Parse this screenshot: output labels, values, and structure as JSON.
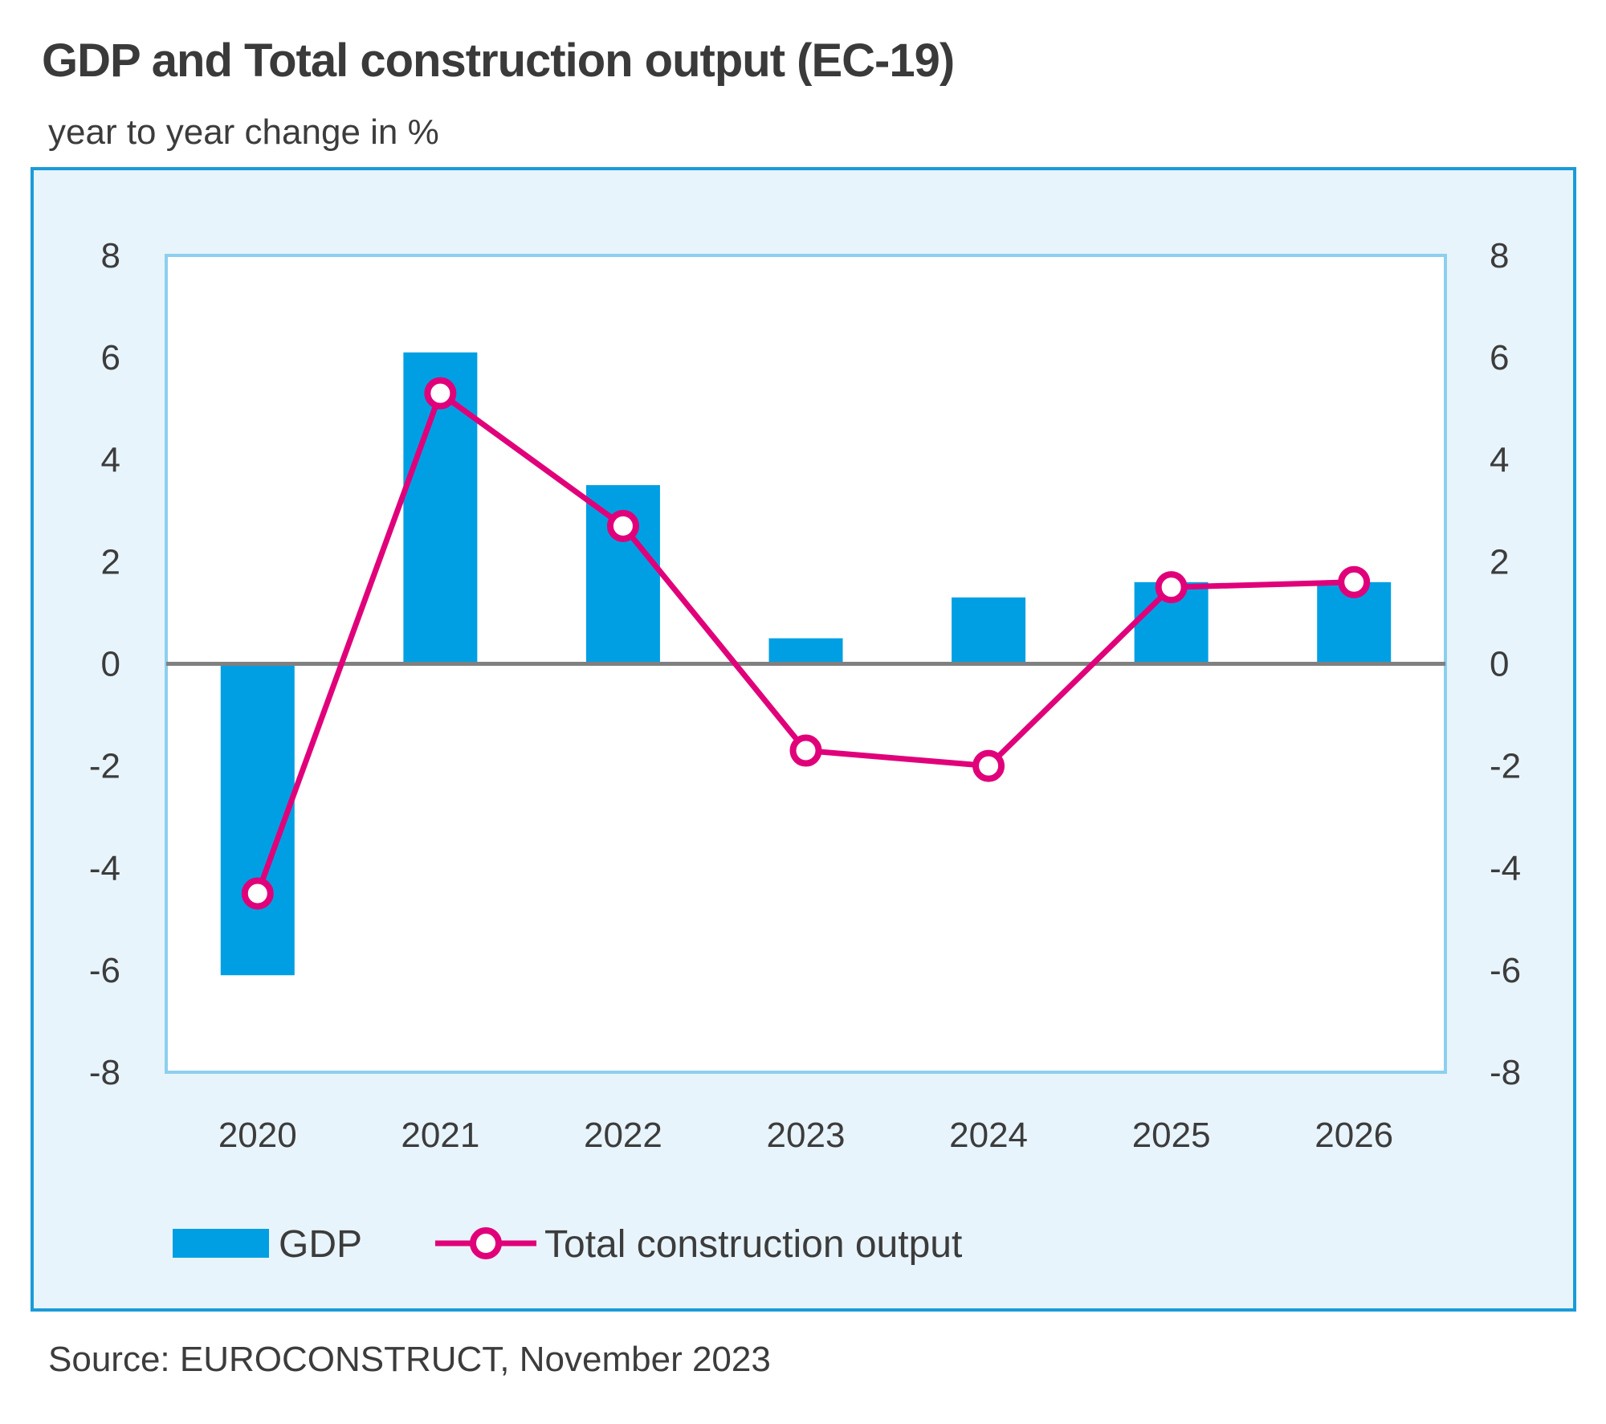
{
  "header": {
    "title": "GDP and Total construction output (EC-19)",
    "subtitle": "year to year change in %"
  },
  "footer": {
    "source": "Source: EUROCONSTRUCT, November 2023"
  },
  "colors": {
    "gdp": "#009fe3",
    "construction": "#e0007a",
    "plot_border": "#8ccfee",
    "panel_border": "#1a9bd7",
    "panel_bg": "#e8f4fb",
    "zero_line": "#808080"
  },
  "chart_data": {
    "type": "bar",
    "title": "GDP and Total construction output (EC-19)",
    "subtitle": "year to year change in %",
    "categories": [
      "2020",
      "2021",
      "2022",
      "2023",
      "2024",
      "2025",
      "2026"
    ],
    "series": [
      {
        "name": "GDP",
        "kind": "bar",
        "values": [
          -6.1,
          6.1,
          3.5,
          0.5,
          1.3,
          1.6,
          1.6
        ]
      },
      {
        "name": "Total construction output",
        "kind": "line",
        "values": [
          -4.5,
          5.3,
          2.7,
          -1.7,
          -2.0,
          1.5,
          1.6
        ]
      }
    ],
    "ylim": [
      -8,
      8
    ],
    "yticks": [
      8,
      6,
      4,
      2,
      0,
      -2,
      -4,
      -6,
      -8
    ],
    "secondary_yticks": [
      8,
      6,
      4,
      2,
      0,
      -2,
      -4,
      -6,
      -8
    ],
    "xlabel": "",
    "ylabel": "",
    "grid": false,
    "legend_position": "bottom-left"
  }
}
